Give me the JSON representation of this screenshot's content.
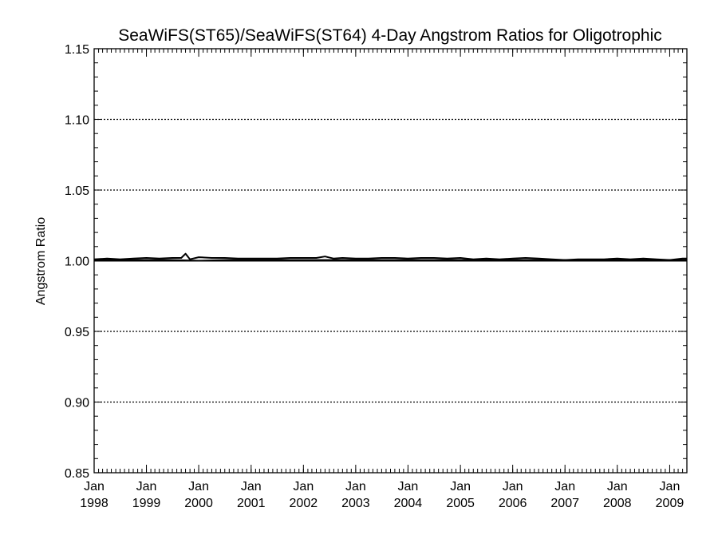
{
  "chart_data": {
    "type": "line",
    "title": "SeaWiFS(ST65)/SeaWiFS(ST64) 4-Day Angstrom Ratios for Oligotrophic",
    "xlabel": "",
    "ylabel": "Angstrom Ratio",
    "ylim": [
      0.85,
      1.15
    ],
    "xlim": [
      "1998-01-01",
      "2009-05-01"
    ],
    "grid": "dotted horizontal lines at major y ticks",
    "y_ticks": [
      "0.85",
      "0.90",
      "0.95",
      "1.00",
      "1.05",
      "1.10",
      "1.15"
    ],
    "x_ticks": [
      {
        "month": "Jan",
        "year": "1998"
      },
      {
        "month": "Jan",
        "year": "1999"
      },
      {
        "month": "Jan",
        "year": "2000"
      },
      {
        "month": "Jan",
        "year": "2001"
      },
      {
        "month": "Jan",
        "year": "2002"
      },
      {
        "month": "Jan",
        "year": "2003"
      },
      {
        "month": "Jan",
        "year": "2004"
      },
      {
        "month": "Jan",
        "year": "2005"
      },
      {
        "month": "Jan",
        "year": "2006"
      },
      {
        "month": "Jan",
        "year": "2007"
      },
      {
        "month": "Jan",
        "year": "2008"
      },
      {
        "month": "Jan",
        "year": "2009"
      }
    ],
    "series": [
      {
        "x": [
          "1998-01-01",
          "1998-04-01",
          "1998-07-01",
          "1998-10-01",
          "1999-01-01",
          "1999-04-01",
          "1999-07-01",
          "1999-09-01",
          "1999-10-01",
          "1999-11-01",
          "2000-01-01",
          "2000-04-01",
          "2000-07-01",
          "2000-10-01",
          "2001-01-01",
          "2001-04-01",
          "2001-07-01",
          "2001-10-01",
          "2002-01-01",
          "2002-04-01",
          "2002-06-01",
          "2002-08-01",
          "2002-10-01",
          "2003-01-01",
          "2003-04-01",
          "2003-07-01",
          "2003-10-01",
          "2004-01-01",
          "2004-04-01",
          "2004-07-01",
          "2004-10-01",
          "2005-01-01",
          "2005-04-01",
          "2005-07-01",
          "2005-10-01",
          "2006-01-01",
          "2006-04-01",
          "2006-07-01",
          "2006-10-01",
          "2007-01-01",
          "2007-04-01",
          "2007-07-01",
          "2007-10-01",
          "2008-01-01",
          "2008-04-01",
          "2008-07-01",
          "2008-10-01",
          "2009-01-01",
          "2009-04-01",
          "2009-05-01"
        ],
        "values": [
          1.001,
          1.0015,
          1.001,
          1.0015,
          1.002,
          1.0015,
          1.002,
          1.002,
          1.005,
          1.001,
          1.0025,
          1.002,
          1.002,
          1.0015,
          1.0015,
          1.0015,
          1.0015,
          1.002,
          1.002,
          1.002,
          1.003,
          1.0015,
          1.002,
          1.0015,
          1.0015,
          1.002,
          1.002,
          1.0015,
          1.002,
          1.002,
          1.0015,
          1.002,
          1.001,
          1.0015,
          1.001,
          1.0015,
          1.002,
          1.0015,
          1.001,
          1.0005,
          1.001,
          1.001,
          1.001,
          1.0015,
          1.001,
          1.0015,
          1.001,
          1.0005,
          1.0015,
          1.0015
        ]
      },
      {
        "x": [
          "1998-01-01",
          "1998-07-01",
          "1999-01-01",
          "1999-07-01",
          "2000-01-01",
          "2000-07-01",
          "2001-01-01",
          "2001-07-01",
          "2002-01-01",
          "2002-07-01",
          "2003-01-01",
          "2003-07-01",
          "2004-01-01",
          "2004-07-01",
          "2005-01-01",
          "2005-07-01",
          "2006-01-01",
          "2006-07-01",
          "2007-01-01",
          "2007-07-01",
          "2008-01-01",
          "2008-07-01",
          "2009-01-01",
          "2009-05-01"
        ],
        "values": [
          1.0005,
          1.0005,
          1.0005,
          1.0005,
          1.0,
          1.0005,
          1.0005,
          1.0005,
          1.0005,
          1.0005,
          1.0005,
          1.0005,
          1.0005,
          1.0005,
          1.0005,
          1.0005,
          1.0005,
          1.0005,
          1.0005,
          1.0005,
          1.0005,
          1.0005,
          1.0005,
          1.0005
        ]
      },
      {
        "x": [
          "1998-01-01",
          "2009-05-01"
        ],
        "values": [
          1.0,
          1.0
        ]
      }
    ]
  }
}
